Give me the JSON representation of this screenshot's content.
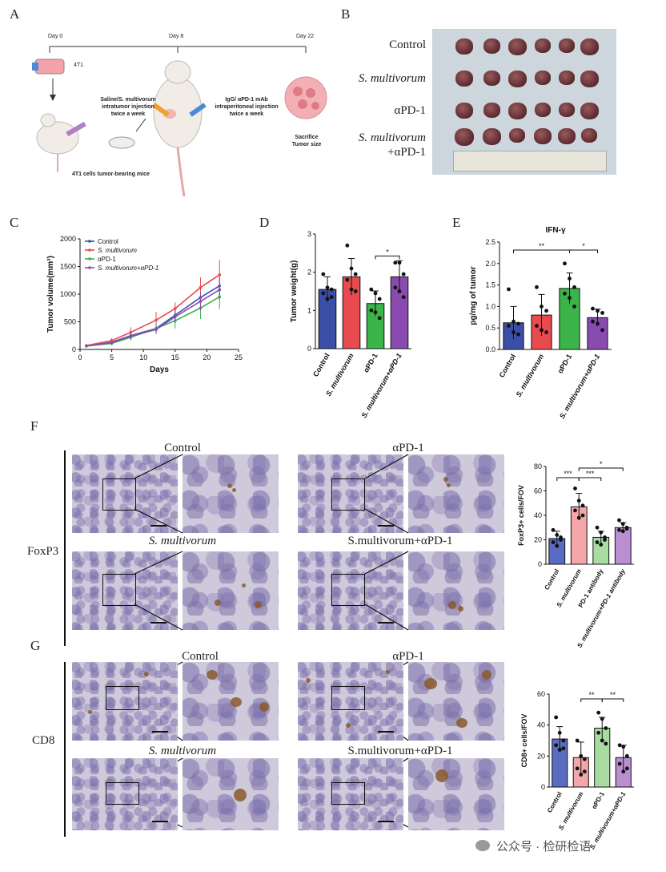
{
  "panels": {
    "A": {
      "label": "A",
      "day0": "Day 0",
      "day8": "Day 8",
      "day22": "Day 22",
      "cell_line": "4T1",
      "inject1_line1": "Saline/S. multivorum",
      "inject1_line2": "intratumor injection",
      "inject1_line3": "twice a week",
      "inject2_line1": "IgG/ αPD-1 mAb",
      "inject2_line2": "intraperitoneal injection",
      "inject2_line3": "twice a week",
      "sacrifice_line1": "Sacrifice",
      "sacrifice_line2": "Tumor size",
      "mice_caption": "4T1 cells tumor-bearing mice"
    },
    "B": {
      "label": "B",
      "rows": [
        "Control",
        "S. multivorum",
        "αPD-1",
        "S. multivorum",
        "+αPD-1"
      ]
    },
    "C": {
      "label": "C"
    },
    "D": {
      "label": "D"
    },
    "E": {
      "label": "E"
    },
    "F": {
      "label": "F",
      "marker": "FoxP3",
      "titles": [
        "Control",
        "αPD-1",
        "S. multivorum",
        "S.multivorum+αPD-1"
      ]
    },
    "G": {
      "label": "G",
      "marker": "CD8",
      "titles": [
        "Control",
        "αPD-1",
        "S. multivorum",
        "S.multivorum+αPD-1"
      ]
    }
  },
  "watermark": "公众号 · 检研检语",
  "colors": {
    "control": "#3b4fa8",
    "smulti": "#e84a4f",
    "apd1": "#3bb54a",
    "combo": "#8a4bb0"
  },
  "chart_data": [
    {
      "id": "C",
      "type": "line",
      "title": "",
      "xlabel": "Days",
      "ylabel": "Tumor volume(mm³)",
      "xlim": [
        0,
        25
      ],
      "ylim": [
        0,
        2000
      ],
      "xticks": [
        0,
        5,
        10,
        15,
        20,
        25
      ],
      "yticks": [
        0,
        500,
        1000,
        1500,
        2000
      ],
      "x": [
        1,
        5,
        8,
        12,
        15,
        19,
        22
      ],
      "legend_position": "top-left",
      "series": [
        {
          "name": "Control",
          "values": [
            60,
            130,
            250,
            380,
            620,
            940,
            1150
          ],
          "err": [
            20,
            40,
            60,
            80,
            110,
            150,
            180
          ]
        },
        {
          "name": "S. multivorum",
          "values": [
            70,
            160,
            310,
            530,
            740,
            1120,
            1350
          ],
          "err": [
            20,
            45,
            90,
            150,
            110,
            180,
            270
          ]
        },
        {
          "name": "αPD-1",
          "values": [
            60,
            110,
            220,
            380,
            520,
            750,
            950
          ],
          "err": [
            20,
            35,
            60,
            100,
            140,
            200,
            220
          ]
        },
        {
          "name": "S. multivorum+αPD-1",
          "values": [
            65,
            120,
            240,
            360,
            590,
            870,
            1080
          ],
          "err": [
            20,
            30,
            60,
            70,
            110,
            160,
            190
          ]
        }
      ]
    },
    {
      "id": "D",
      "type": "bar",
      "title": "",
      "ylabel": "Tumor weight(g)",
      "ylim": [
        0,
        3
      ],
      "yticks": [
        0,
        1,
        2,
        3
      ],
      "categories": [
        "Control",
        "S. multivorum",
        "αPD-1",
        "S. multivorum+αPD-1"
      ],
      "values": [
        1.55,
        1.88,
        1.18,
        1.88
      ],
      "err": [
        0.33,
        0.48,
        0.33,
        0.42
      ],
      "points": [
        [
          1.95,
          1.6,
          1.55,
          1.45,
          1.3,
          1.35
        ],
        [
          2.7,
          2.1,
          1.95,
          1.8,
          1.55,
          1.5
        ],
        [
          1.55,
          1.45,
          1.3,
          1.0,
          0.95,
          0.8
        ],
        [
          2.25,
          2.25,
          1.95,
          1.6,
          1.5,
          1.35
        ]
      ],
      "significance": [
        {
          "from": 2,
          "to": 3,
          "label": "*"
        }
      ]
    },
    {
      "id": "E",
      "type": "bar",
      "title": "IFN-γ",
      "ylabel": "pg/mg of tumor",
      "ylim": [
        0,
        2.5
      ],
      "yticks": [
        0.0,
        0.5,
        1.0,
        1.5,
        2.0,
        2.5
      ],
      "categories": [
        "Control",
        "S. multivorum",
        "αPD-1",
        "S. multivorum+αPD-1"
      ],
      "values": [
        0.62,
        0.8,
        1.42,
        0.74
      ],
      "err": [
        0.38,
        0.48,
        0.36,
        0.2
      ],
      "points": [
        [
          1.4,
          0.65,
          0.6,
          0.55,
          0.4,
          0.35
        ],
        [
          1.45,
          1.0,
          0.9,
          0.55,
          0.45,
          0.4
        ],
        [
          2.0,
          1.65,
          1.45,
          1.3,
          1.2,
          1.0
        ],
        [
          0.95,
          0.9,
          0.85,
          0.65,
          0.6,
          0.45
        ]
      ],
      "significance": [
        {
          "from": 0,
          "to": 2,
          "label": "**"
        },
        {
          "from": 2,
          "to": 3,
          "label": "*"
        }
      ]
    },
    {
      "id": "F",
      "type": "bar",
      "title": "",
      "ylabel": "FoxP3+ cells/FOV",
      "ylim": [
        0,
        80
      ],
      "yticks": [
        0,
        20,
        40,
        60,
        80
      ],
      "categories": [
        "Control",
        "S. multivorum",
        "PD-1 antibody",
        "S. multivorum+PD-1 antibody"
      ],
      "values": [
        21,
        47,
        22,
        30
      ],
      "err": [
        6,
        11,
        5,
        4
      ],
      "points": [
        [
          28,
          24,
          20,
          18,
          15,
          22
        ],
        [
          62,
          52,
          48,
          44,
          38,
          40
        ],
        [
          30,
          26,
          22,
          18,
          16,
          20
        ],
        [
          36,
          33,
          30,
          28,
          27,
          29
        ]
      ],
      "significance": [
        {
          "from": 0,
          "to": 1,
          "label": "***"
        },
        {
          "from": 1,
          "to": 2,
          "label": "***"
        },
        {
          "from": 1,
          "to": 3,
          "label": "*"
        }
      ]
    },
    {
      "id": "G",
      "type": "bar",
      "title": "",
      "ylabel": "CD8+ cells/FOV",
      "ylim": [
        0,
        60
      ],
      "yticks": [
        0,
        20,
        40,
        60
      ],
      "categories": [
        "Control",
        "S. multivorum",
        "αPD-1",
        "S. multivorum+αPD-1"
      ],
      "values": [
        31,
        19,
        38,
        19
      ],
      "err": [
        8,
        10,
        7,
        8
      ],
      "points": [
        [
          45,
          35,
          30,
          27,
          24,
          25
        ],
        [
          30,
          20,
          18,
          12,
          8,
          10
        ],
        [
          48,
          44,
          38,
          35,
          30,
          28
        ],
        [
          27,
          26,
          20,
          15,
          10,
          12
        ]
      ],
      "significance": [
        {
          "from": 1,
          "to": 2,
          "label": "**"
        },
        {
          "from": 2,
          "to": 3,
          "label": "**"
        }
      ]
    }
  ]
}
